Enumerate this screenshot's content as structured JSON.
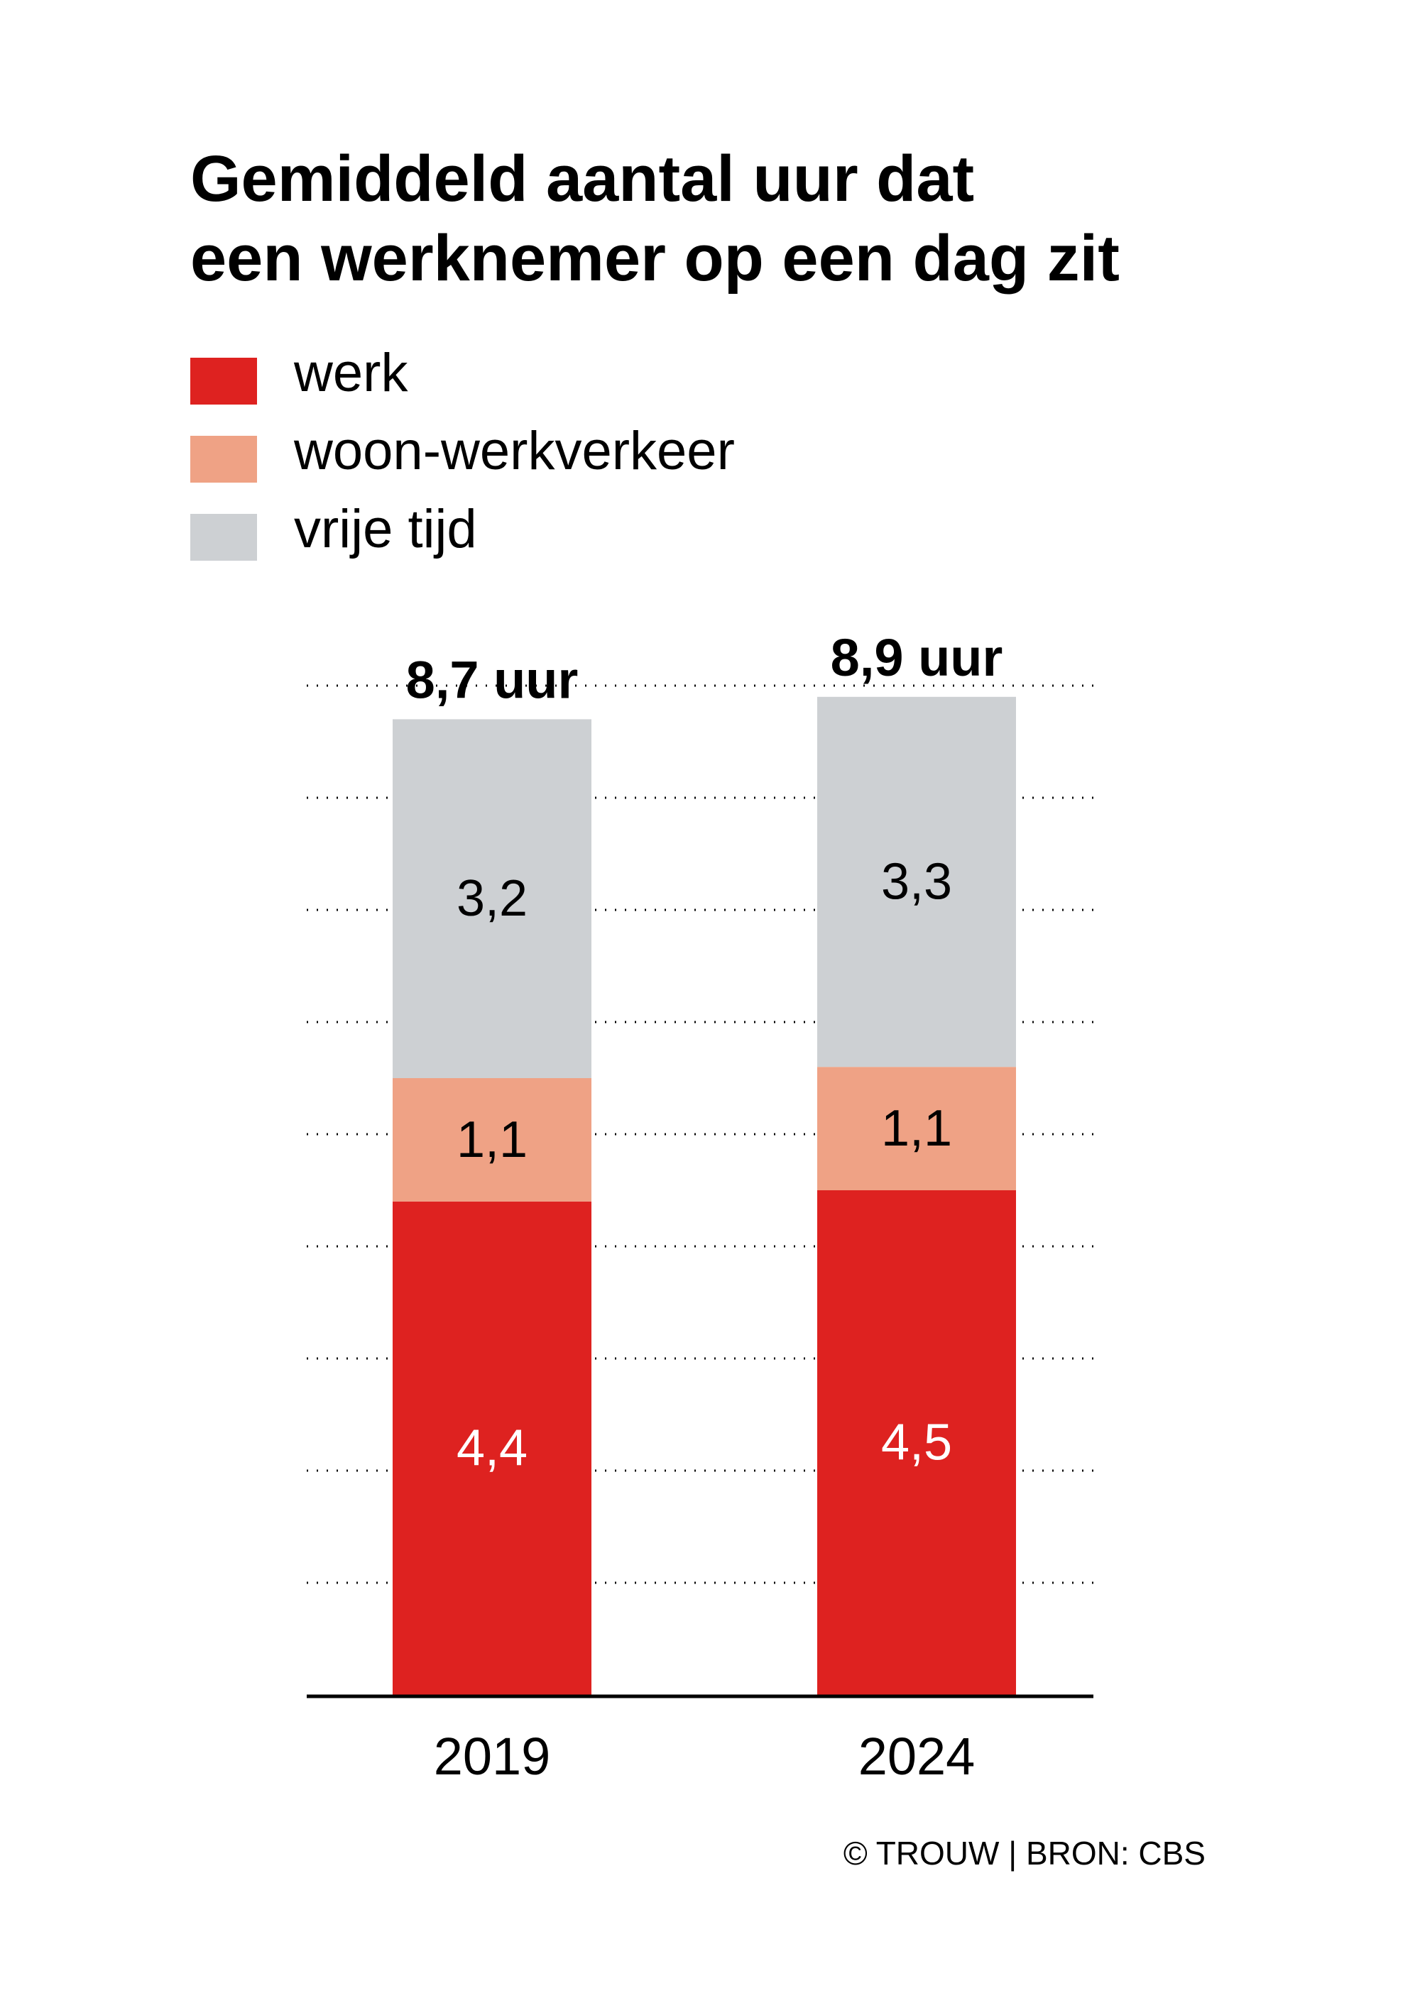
{
  "title": {
    "line1": "Gemiddeld aantal uur dat",
    "line2": "een werknemer op een dag zit"
  },
  "legend": [
    {
      "label": "werk",
      "color": "#de2220"
    },
    {
      "label": "woon-werkverkeer",
      "color": "#efa285"
    },
    {
      "label": "vrije tijd",
      "color": "#cdd0d3"
    }
  ],
  "source": "© TROUW | BRON: CBS",
  "chart_data": {
    "type": "bar",
    "stacked": true,
    "categories": [
      "2019",
      "2024"
    ],
    "series": [
      {
        "name": "werk",
        "values": [
          4.4,
          4.5
        ],
        "color": "#de2220"
      },
      {
        "name": "woon-werkverkeer",
        "values": [
          1.1,
          1.1
        ],
        "color": "#efa285"
      },
      {
        "name": "vrije tijd",
        "values": [
          3.2,
          3.3
        ],
        "color": "#cdd0d3"
      }
    ],
    "segment_labels": [
      [
        "4,4",
        "1,1",
        "3,2"
      ],
      [
        "4,5",
        "1,1",
        "3,3"
      ]
    ],
    "totals": [
      8.7,
      8.9
    ],
    "total_labels": [
      "8,7 uur",
      "8,9 uur"
    ],
    "ylim": [
      0,
      9
    ],
    "grid": "dotted",
    "legend_position": "top-left"
  }
}
